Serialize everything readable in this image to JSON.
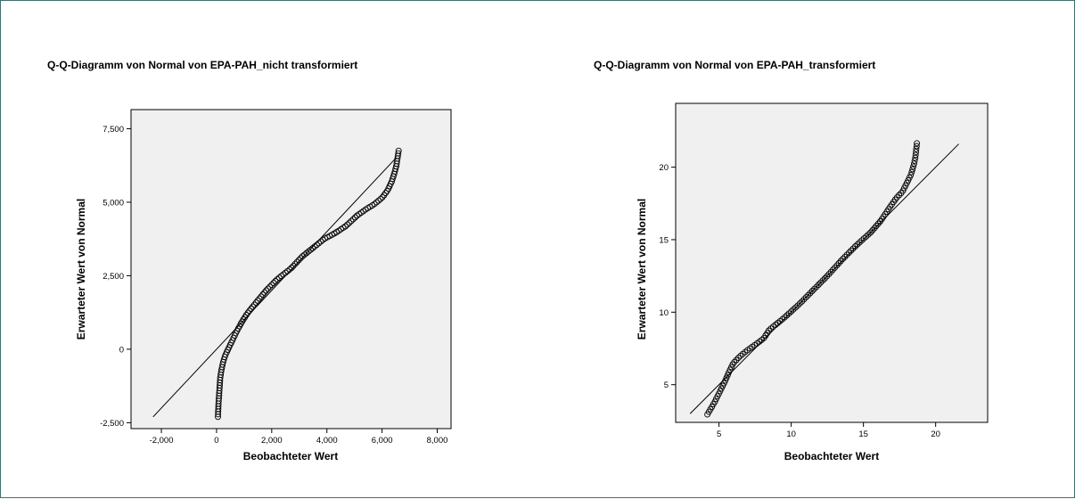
{
  "chart_data": [
    {
      "type": "scatter",
      "title": "Q-Q-Diagramm von Normal von EPA-PAH_nicht transformiert",
      "xlabel": "Beobachteter Wert",
      "ylabel": "Erwarteter Wert von Normal",
      "xlim": [
        -3100,
        8500
      ],
      "ylim": [
        -2700,
        8150
      ],
      "x_ticks": [
        -2000,
        0,
        2000,
        4000,
        6000,
        8000
      ],
      "x_tick_labels": [
        "-2,000",
        "0",
        "2,000",
        "4,000",
        "6,000",
        "8,000"
      ],
      "y_ticks": [
        -2500,
        0,
        2500,
        5000,
        7500
      ],
      "y_tick_labels": [
        "-2,500",
        "0",
        "2,500",
        "5,000",
        "7,500"
      ],
      "grid": false,
      "legend": "none",
      "reference_line": {
        "from": [
          -2300,
          -2300
        ],
        "to": [
          6500,
          6500
        ]
      },
      "series_curve": [
        [
          50,
          -2300
        ],
        [
          70,
          -1850
        ],
        [
          90,
          -1600
        ],
        [
          110,
          -1300
        ],
        [
          130,
          -1000
        ],
        [
          160,
          -800
        ],
        [
          200,
          -600
        ],
        [
          250,
          -400
        ],
        [
          320,
          -200
        ],
        [
          420,
          0
        ],
        [
          550,
          250
        ],
        [
          700,
          550
        ],
        [
          900,
          900
        ],
        [
          1100,
          1200
        ],
        [
          1400,
          1550
        ],
        [
          1800,
          2000
        ],
        [
          2200,
          2380
        ],
        [
          2700,
          2750
        ],
        [
          3100,
          3150
        ],
        [
          3500,
          3450
        ],
        [
          3900,
          3750
        ],
        [
          4300,
          3950
        ],
        [
          4700,
          4200
        ],
        [
          5100,
          4550
        ],
        [
          5400,
          4750
        ],
        [
          5700,
          4920
        ],
        [
          6000,
          5150
        ],
        [
          6200,
          5400
        ],
        [
          6350,
          5700
        ],
        [
          6450,
          6000
        ],
        [
          6520,
          6250
        ],
        [
          6600,
          6750
        ]
      ],
      "point_count": 130,
      "colors": {
        "plot_bg": "#f0f0f0",
        "marker": "#000000"
      }
    },
    {
      "type": "scatter",
      "title": "Q-Q-Diagramm von Normal von EPA-PAH_transformiert",
      "xlabel": "Beobachteter Wert",
      "ylabel": "Erwarteter Wert von Normal",
      "xlim": [
        2,
        23.6
      ],
      "ylim": [
        2.4,
        24.4
      ],
      "x_ticks": [
        5,
        10,
        15,
        20
      ],
      "x_tick_labels": [
        "5",
        "10",
        "15",
        "20"
      ],
      "y_ticks": [
        5,
        10,
        15,
        20
      ],
      "y_tick_labels": [
        "5",
        "10",
        "15",
        "20"
      ],
      "grid": false,
      "legend": "none",
      "reference_line": {
        "from": [
          3,
          3
        ],
        "to": [
          21.6,
          21.6
        ]
      },
      "series_curve": [
        [
          4.2,
          2.95
        ],
        [
          4.7,
          3.8
        ],
        [
          5.0,
          4.4
        ],
        [
          5.4,
          5.2
        ],
        [
          5.7,
          5.9
        ],
        [
          6.0,
          6.5
        ],
        [
          6.5,
          7.0
        ],
        [
          7.0,
          7.4
        ],
        [
          7.5,
          7.75
        ],
        [
          8.1,
          8.2
        ],
        [
          8.5,
          8.8
        ],
        [
          9.5,
          9.6
        ],
        [
          10.5,
          10.5
        ],
        [
          11.5,
          11.5
        ],
        [
          12.5,
          12.5
        ],
        [
          13.5,
          13.6
        ],
        [
          14.5,
          14.6
        ],
        [
          15.5,
          15.5
        ],
        [
          16.2,
          16.3
        ],
        [
          16.8,
          17.2
        ],
        [
          17.3,
          17.9
        ],
        [
          17.7,
          18.3
        ],
        [
          18.0,
          18.9
        ],
        [
          18.3,
          19.5
        ],
        [
          18.5,
          20.2
        ],
        [
          18.6,
          20.7
        ],
        [
          18.7,
          21.65
        ]
      ],
      "point_count": 120,
      "colors": {
        "plot_bg": "#f0f0f0",
        "marker": "#000000"
      }
    }
  ]
}
